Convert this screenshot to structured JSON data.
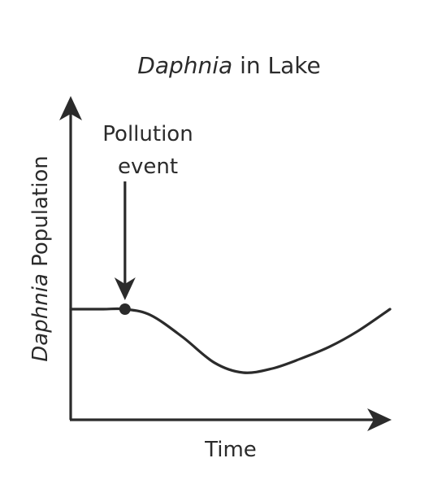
{
  "chart_data": {
    "type": "line",
    "title": {
      "italic_part": "Daphnia",
      "regular_part": " in Lake"
    },
    "xlabel": "Time",
    "ylabel": {
      "italic_part": "Daphnia",
      "regular_part": " Population"
    },
    "xlim": [
      0,
      10
    ],
    "ylim": [
      0,
      10
    ],
    "x_ticks_shown": false,
    "y_ticks_shown": false,
    "grid": false,
    "series": [
      {
        "name": "Daphnia population",
        "x": [
          0,
          1,
          1.7,
          2.5,
          3.5,
          4.5,
          5.4,
          6.3,
          7.2,
          8.1,
          9,
          10
        ],
        "y": [
          5.0,
          5.0,
          5.0,
          4.7,
          3.6,
          2.3,
          1.8,
          2.0,
          2.5,
          3.1,
          3.9,
          5.0
        ]
      }
    ],
    "annotations": [
      {
        "lines": [
          "Pollution",
          "event"
        ],
        "x": 1.7,
        "y": 5.0,
        "marker": "dot",
        "arrow": "down"
      }
    ]
  }
}
